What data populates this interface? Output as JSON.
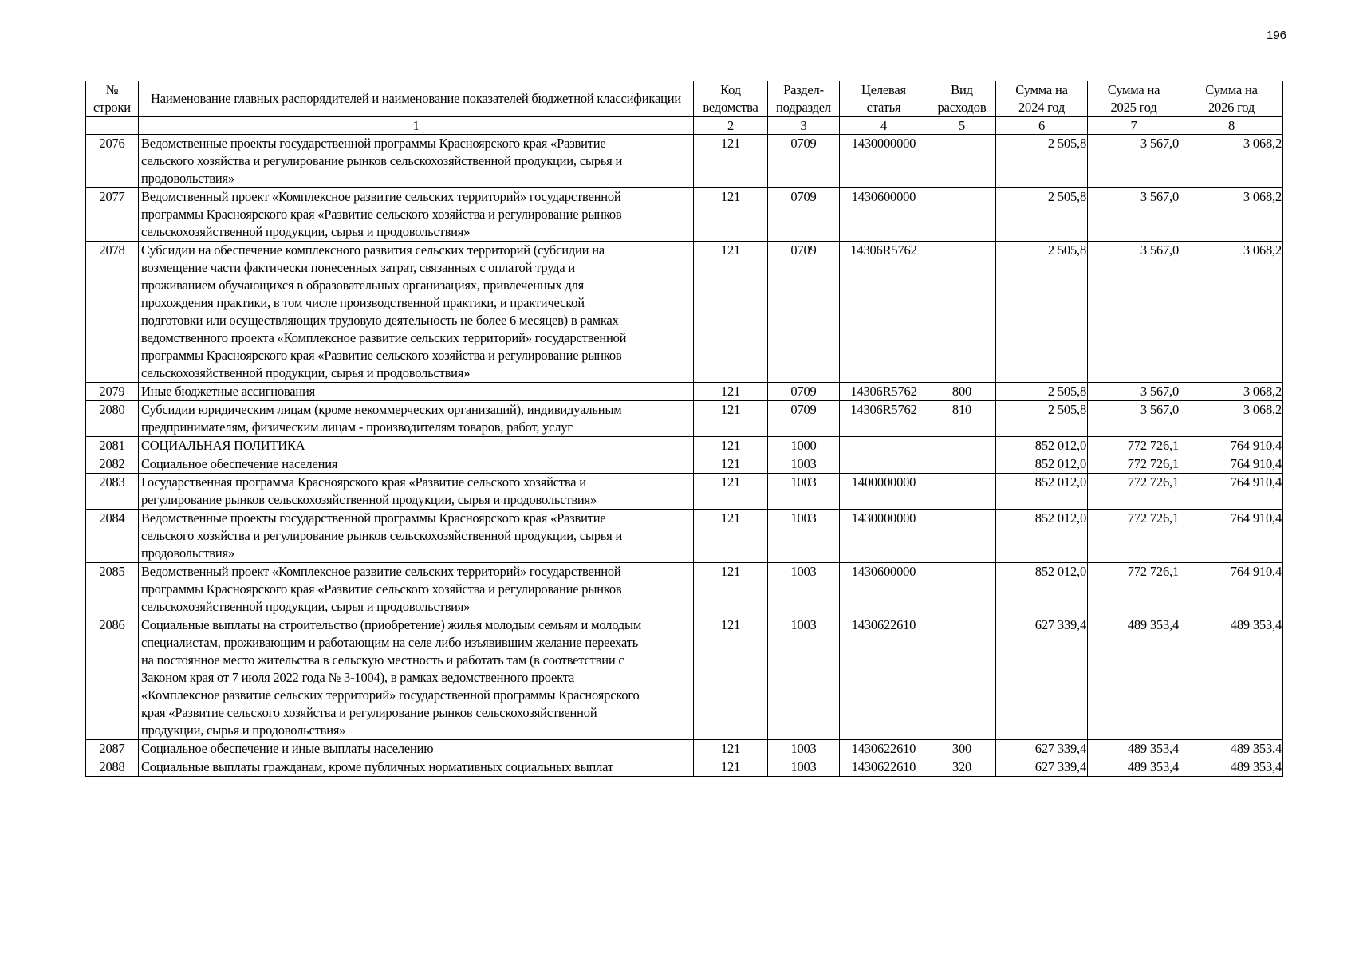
{
  "page_number": "196",
  "header": {
    "columns": [
      "№\nстроки",
      "Наименование главных распорядителей и наименование показателей бюджетной классификации",
      "Код\nведомства",
      "Раздел-\nподраздел",
      "Целевая\nстатья",
      "Вид\nрасходов",
      "Сумма на\n2024 год",
      "Сумма на\n2025 год",
      "Сумма на\n2026 год"
    ],
    "column_numbers": [
      "",
      "1",
      "2",
      "3",
      "4",
      "5",
      "6",
      "7",
      "8"
    ]
  },
  "rows": [
    {
      "num": "2076",
      "name": "Ведомственные проекты государственной программы Красноярского края «Развитие\nсельского хозяйства и регулирование рынков сельскохозяйственной продукции, сырья и\nпродовольствия»",
      "ved": "121",
      "razdel": "0709",
      "csr": "1430000000",
      "vr": "",
      "s2024": "2 505,8",
      "s2025": "3 567,0",
      "s2026": "3 068,2"
    },
    {
      "num": "2077",
      "name": "Ведомственный проект «Комплексное развитие сельских территорий» государственной\nпрограммы Красноярского края «Развитие сельского хозяйства и регулирование рынков\nсельскохозяйственной продукции, сырья и продовольствия»",
      "ved": "121",
      "razdel": "0709",
      "csr": "1430600000",
      "vr": "",
      "s2024": "2 505,8",
      "s2025": "3 567,0",
      "s2026": "3 068,2"
    },
    {
      "num": "2078",
      "name": "Субсидии на обеспечение комплексного развития сельских территорий (субсидии на\nвозмещение части фактически понесенных затрат, связанных с оплатой труда и\nпроживанием обучающихся в образовательных организациях, привлеченных для\nпрохождения практики, в том числе производственной практики, и практической\nподготовки или осуществляющих трудовую деятельность не более 6 месяцев) в рамках\nведомственного проекта «Комплексное развитие сельских территорий» государственной\nпрограммы Красноярского края «Развитие сельского хозяйства и регулирование рынков\nсельскохозяйственной продукции, сырья и продовольствия»",
      "ved": "121",
      "razdel": "0709",
      "csr": "14306R5762",
      "vr": "",
      "s2024": "2 505,8",
      "s2025": "3 567,0",
      "s2026": "3 068,2"
    },
    {
      "num": "2079",
      "name": "Иные бюджетные ассигнования",
      "ved": "121",
      "razdel": "0709",
      "csr": "14306R5762",
      "vr": "800",
      "s2024": "2 505,8",
      "s2025": "3 567,0",
      "s2026": "3 068,2"
    },
    {
      "num": "2080",
      "name": "Субсидии юридическим лицам (кроме некоммерческих организаций), индивидуальным\nпредпринимателям, физическим лицам - производителям товаров, работ, услуг",
      "ved": "121",
      "razdel": "0709",
      "csr": "14306R5762",
      "vr": "810",
      "s2024": "2 505,8",
      "s2025": "3 567,0",
      "s2026": "3 068,2"
    },
    {
      "num": "2081",
      "name": "СОЦИАЛЬНАЯ ПОЛИТИКА",
      "ved": "121",
      "razdel": "1000",
      "csr": "",
      "vr": "",
      "s2024": "852 012,0",
      "s2025": "772 726,1",
      "s2026": "764 910,4"
    },
    {
      "num": "2082",
      "name": "Социальное обеспечение населения",
      "ved": "121",
      "razdel": "1003",
      "csr": "",
      "vr": "",
      "s2024": "852 012,0",
      "s2025": "772 726,1",
      "s2026": "764 910,4"
    },
    {
      "num": "2083",
      "name": "Государственная программа Красноярского края «Развитие сельского хозяйства и\nрегулирование рынков сельскохозяйственной продукции, сырья и продовольствия»",
      "ved": "121",
      "razdel": "1003",
      "csr": "1400000000",
      "vr": "",
      "s2024": "852 012,0",
      "s2025": "772 726,1",
      "s2026": "764 910,4"
    },
    {
      "num": "2084",
      "name": "Ведомственные проекты государственной программы Красноярского края «Развитие\nсельского хозяйства и регулирование рынков сельскохозяйственной продукции, сырья и\nпродовольствия»",
      "ved": "121",
      "razdel": "1003",
      "csr": "1430000000",
      "vr": "",
      "s2024": "852 012,0",
      "s2025": "772 726,1",
      "s2026": "764 910,4"
    },
    {
      "num": "2085",
      "name": "Ведомственный проект «Комплексное развитие сельских территорий» государственной\nпрограммы Красноярского края «Развитие сельского хозяйства и регулирование рынков\nсельскохозяйственной продукции, сырья и продовольствия»",
      "ved": "121",
      "razdel": "1003",
      "csr": "1430600000",
      "vr": "",
      "s2024": "852 012,0",
      "s2025": "772 726,1",
      "s2026": "764 910,4"
    },
    {
      "num": "2086",
      "name": "Социальные выплаты на строительство (приобретение) жилья молодым семьям и молодым\nспециалистам, проживающим и работающим на селе либо изъявившим желание переехать\nна постоянное место жительства в сельскую местность и работать там (в соответствии с\nЗаконом края от 7 июля 2022 года № 3-1004), в рамках ведомственного проекта\n«Комплексное развитие сельских территорий» государственной программы Красноярского\nкрая «Развитие сельского хозяйства и регулирование рынков сельскохозяйственной\nпродукции, сырья и продовольствия»",
      "ved": "121",
      "razdel": "1003",
      "csr": "1430622610",
      "vr": "",
      "s2024": "627 339,4",
      "s2025": "489 353,4",
      "s2026": "489 353,4"
    },
    {
      "num": "2087",
      "name": "Социальное обеспечение и иные выплаты населению",
      "ved": "121",
      "razdel": "1003",
      "csr": "1430622610",
      "vr": "300",
      "s2024": "627 339,4",
      "s2025": "489 353,4",
      "s2026": "489 353,4"
    },
    {
      "num": "2088",
      "name": "Социальные выплаты гражданам, кроме публичных нормативных социальных выплат",
      "ved": "121",
      "razdel": "1003",
      "csr": "1430622610",
      "vr": "320",
      "s2024": "627 339,4",
      "s2025": "489 353,4",
      "s2026": "489 353,4"
    }
  ]
}
